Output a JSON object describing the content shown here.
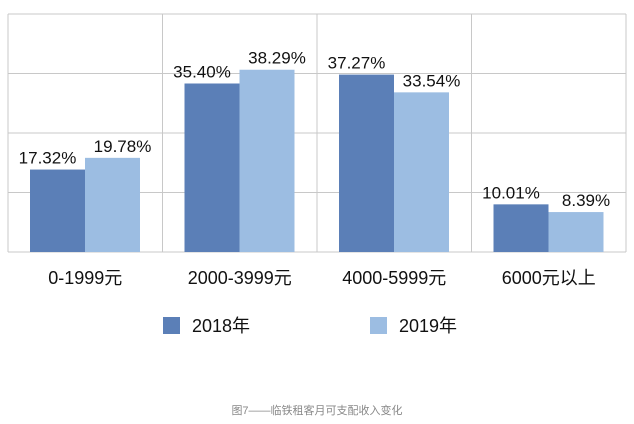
{
  "chart_data": {
    "type": "bar",
    "caption": "图7——临铁租客月可支配收入变化",
    "categories": [
      "0-1999元",
      "2000-3999元",
      "4000-5999元",
      "6000元以上"
    ],
    "series": [
      {
        "name": "2018年",
        "color": "#5b7fb7",
        "values": [
          17.32,
          35.4,
          37.27,
          10.01
        ],
        "value_labels": [
          "17.32%",
          "35.40%",
          "37.27%",
          "10.01%"
        ]
      },
      {
        "name": "2019年",
        "color": "#9cbde2",
        "values": [
          19.78,
          38.29,
          33.54,
          8.39
        ],
        "value_labels": [
          "19.78%",
          "38.29%",
          "33.54%",
          "8.39%"
        ]
      }
    ],
    "ylim": [
      0,
      50
    ],
    "yticks": [
      0,
      12.5,
      25,
      37.5,
      50
    ],
    "grid": true
  }
}
